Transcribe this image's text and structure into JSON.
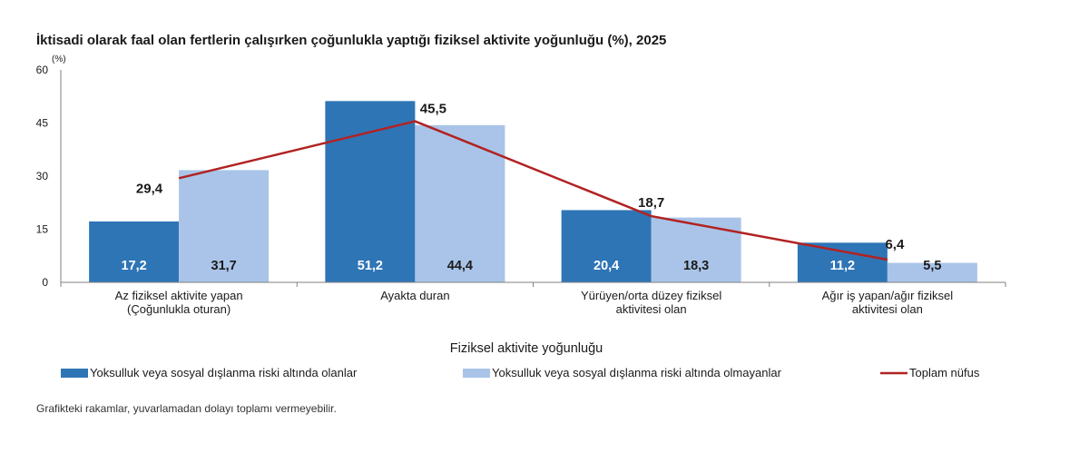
{
  "chart_data": {
    "type": "bar",
    "title": "İktisadi olarak faal olan fertlerin çalışırken çoğunlukla yaptığı fiziksel aktivite yoğunluğu (%), 2025",
    "unit_label": "(%)",
    "xlabel": "Fiziksel aktivite yoğunluğu",
    "ylabel": "",
    "ylim": [
      0,
      60
    ],
    "yticks": [
      "0",
      "15",
      "30",
      "45",
      "60"
    ],
    "ytick_values": [
      0,
      15,
      30,
      45,
      60
    ],
    "grid": false,
    "legend_position": "bottom",
    "categories": [
      [
        "Az fiziksel aktivite yapan",
        "(Çoğunlukla oturan)"
      ],
      [
        "Ayakta duran"
      ],
      [
        "Yürüyen/orta düzey fiziksel",
        "aktivitesi olan"
      ],
      [
        "Ağır iş yapan/ağır fiziksel",
        "aktivitesi olan"
      ]
    ],
    "series": [
      {
        "name": "Yoksulluk veya sosyal dışlanma riski altında olanlar",
        "kind": "bar",
        "color": "#2e75b6",
        "label_color": "#ffffff",
        "values": [
          17.2,
          51.2,
          20.4,
          11.2
        ],
        "labels": [
          "17,2",
          "51,2",
          "20,4",
          "11,2"
        ]
      },
      {
        "name": "Yoksulluk veya sosyal dışlanma riski altında olmayanlar",
        "kind": "bar",
        "color": "#a9c4e8",
        "label_color": "#1a1a1a",
        "values": [
          31.7,
          44.4,
          18.3,
          5.5
        ],
        "labels": [
          "31,7",
          "44,4",
          "18,3",
          "5,5"
        ]
      },
      {
        "name": "Toplam nüfus",
        "kind": "line",
        "color": "#b22222",
        "values": [
          29.4,
          45.5,
          18.7,
          6.4
        ],
        "labels": [
          "29,4",
          "45,5",
          "18,7",
          "6,4"
        ]
      }
    ],
    "note": "Grafikteki rakamlar, yuvarlamadan dolayı toplamı vermeyebilir."
  }
}
